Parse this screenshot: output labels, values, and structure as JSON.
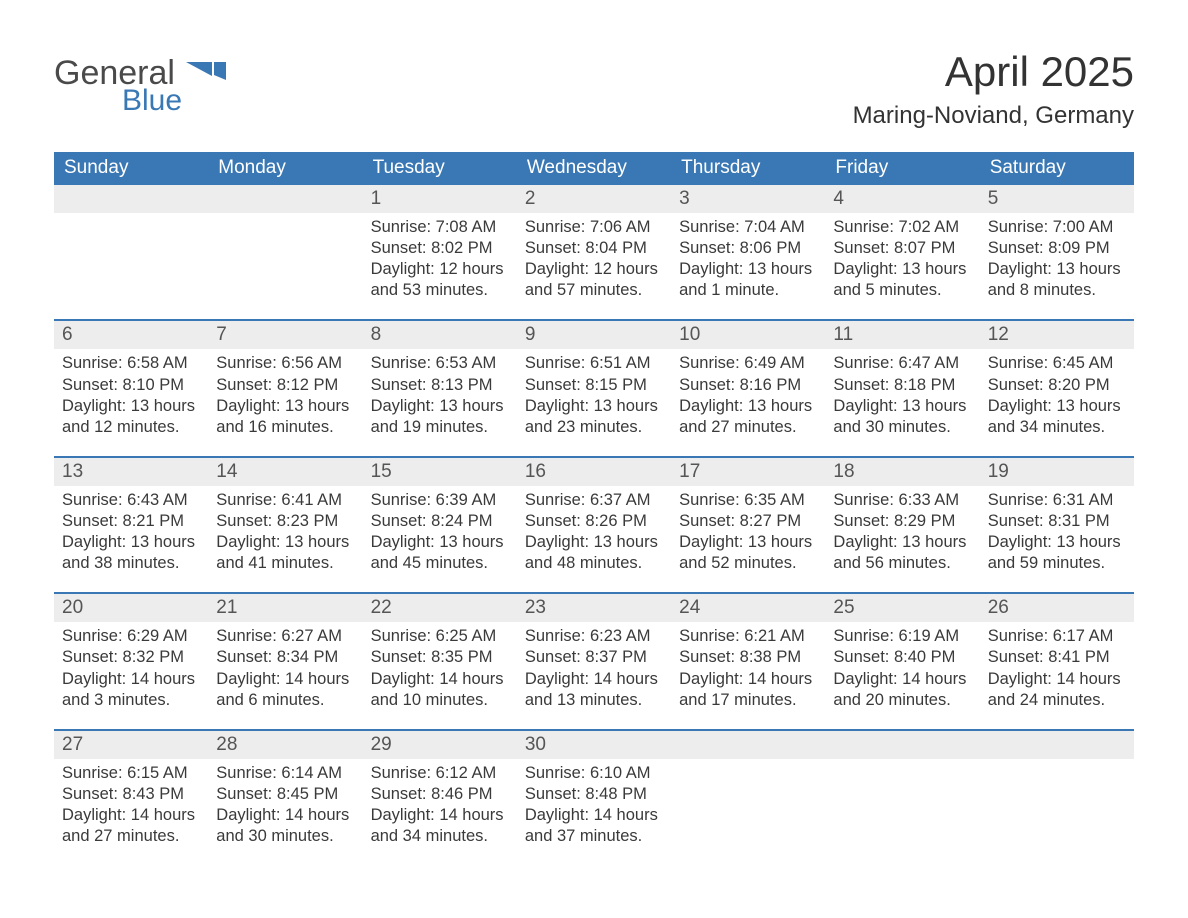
{
  "logo": {
    "word1": "General",
    "word2": "Blue",
    "word1_color": "#4a4a4a",
    "word2_color": "#3a78b5",
    "flag_color": "#3a78b5"
  },
  "title": "April 2025",
  "subtitle": "Maring-Noviand, Germany",
  "colors": {
    "header_bg": "#3a78b5",
    "header_text": "#ffffff",
    "daynum_bg": "#ededed",
    "week_border": "#3a78b5",
    "body_text": "#3a3a3a",
    "page_bg": "#ffffff"
  },
  "typography": {
    "title_fontsize": 42,
    "subtitle_fontsize": 24,
    "dayhead_fontsize": 19,
    "daynum_fontsize": 19,
    "body_fontsize": 16.5
  },
  "day_headers": [
    "Sunday",
    "Monday",
    "Tuesday",
    "Wednesday",
    "Thursday",
    "Friday",
    "Saturday"
  ],
  "weeks": [
    [
      {
        "day": "",
        "lines": []
      },
      {
        "day": "",
        "lines": []
      },
      {
        "day": "1",
        "lines": [
          "Sunrise: 7:08 AM",
          "Sunset: 8:02 PM",
          "Daylight: 12 hours and 53 minutes."
        ]
      },
      {
        "day": "2",
        "lines": [
          "Sunrise: 7:06 AM",
          "Sunset: 8:04 PM",
          "Daylight: 12 hours and 57 minutes."
        ]
      },
      {
        "day": "3",
        "lines": [
          "Sunrise: 7:04 AM",
          "Sunset: 8:06 PM",
          "Daylight: 13 hours and 1 minute."
        ]
      },
      {
        "day": "4",
        "lines": [
          "Sunrise: 7:02 AM",
          "Sunset: 8:07 PM",
          "Daylight: 13 hours and 5 minutes."
        ]
      },
      {
        "day": "5",
        "lines": [
          "Sunrise: 7:00 AM",
          "Sunset: 8:09 PM",
          "Daylight: 13 hours and 8 minutes."
        ]
      }
    ],
    [
      {
        "day": "6",
        "lines": [
          "Sunrise: 6:58 AM",
          "Sunset: 8:10 PM",
          "Daylight: 13 hours and 12 minutes."
        ]
      },
      {
        "day": "7",
        "lines": [
          "Sunrise: 6:56 AM",
          "Sunset: 8:12 PM",
          "Daylight: 13 hours and 16 minutes."
        ]
      },
      {
        "day": "8",
        "lines": [
          "Sunrise: 6:53 AM",
          "Sunset: 8:13 PM",
          "Daylight: 13 hours and 19 minutes."
        ]
      },
      {
        "day": "9",
        "lines": [
          "Sunrise: 6:51 AM",
          "Sunset: 8:15 PM",
          "Daylight: 13 hours and 23 minutes."
        ]
      },
      {
        "day": "10",
        "lines": [
          "Sunrise: 6:49 AM",
          "Sunset: 8:16 PM",
          "Daylight: 13 hours and 27 minutes."
        ]
      },
      {
        "day": "11",
        "lines": [
          "Sunrise: 6:47 AM",
          "Sunset: 8:18 PM",
          "Daylight: 13 hours and 30 minutes."
        ]
      },
      {
        "day": "12",
        "lines": [
          "Sunrise: 6:45 AM",
          "Sunset: 8:20 PM",
          "Daylight: 13 hours and 34 minutes."
        ]
      }
    ],
    [
      {
        "day": "13",
        "lines": [
          "Sunrise: 6:43 AM",
          "Sunset: 8:21 PM",
          "Daylight: 13 hours and 38 minutes."
        ]
      },
      {
        "day": "14",
        "lines": [
          "Sunrise: 6:41 AM",
          "Sunset: 8:23 PM",
          "Daylight: 13 hours and 41 minutes."
        ]
      },
      {
        "day": "15",
        "lines": [
          "Sunrise: 6:39 AM",
          "Sunset: 8:24 PM",
          "Daylight: 13 hours and 45 minutes."
        ]
      },
      {
        "day": "16",
        "lines": [
          "Sunrise: 6:37 AM",
          "Sunset: 8:26 PM",
          "Daylight: 13 hours and 48 minutes."
        ]
      },
      {
        "day": "17",
        "lines": [
          "Sunrise: 6:35 AM",
          "Sunset: 8:27 PM",
          "Daylight: 13 hours and 52 minutes."
        ]
      },
      {
        "day": "18",
        "lines": [
          "Sunrise: 6:33 AM",
          "Sunset: 8:29 PM",
          "Daylight: 13 hours and 56 minutes."
        ]
      },
      {
        "day": "19",
        "lines": [
          "Sunrise: 6:31 AM",
          "Sunset: 8:31 PM",
          "Daylight: 13 hours and 59 minutes."
        ]
      }
    ],
    [
      {
        "day": "20",
        "lines": [
          "Sunrise: 6:29 AM",
          "Sunset: 8:32 PM",
          "Daylight: 14 hours and 3 minutes."
        ]
      },
      {
        "day": "21",
        "lines": [
          "Sunrise: 6:27 AM",
          "Sunset: 8:34 PM",
          "Daylight: 14 hours and 6 minutes."
        ]
      },
      {
        "day": "22",
        "lines": [
          "Sunrise: 6:25 AM",
          "Sunset: 8:35 PM",
          "Daylight: 14 hours and 10 minutes."
        ]
      },
      {
        "day": "23",
        "lines": [
          "Sunrise: 6:23 AM",
          "Sunset: 8:37 PM",
          "Daylight: 14 hours and 13 minutes."
        ]
      },
      {
        "day": "24",
        "lines": [
          "Sunrise: 6:21 AM",
          "Sunset: 8:38 PM",
          "Daylight: 14 hours and 17 minutes."
        ]
      },
      {
        "day": "25",
        "lines": [
          "Sunrise: 6:19 AM",
          "Sunset: 8:40 PM",
          "Daylight: 14 hours and 20 minutes."
        ]
      },
      {
        "day": "26",
        "lines": [
          "Sunrise: 6:17 AM",
          "Sunset: 8:41 PM",
          "Daylight: 14 hours and 24 minutes."
        ]
      }
    ],
    [
      {
        "day": "27",
        "lines": [
          "Sunrise: 6:15 AM",
          "Sunset: 8:43 PM",
          "Daylight: 14 hours and 27 minutes."
        ]
      },
      {
        "day": "28",
        "lines": [
          "Sunrise: 6:14 AM",
          "Sunset: 8:45 PM",
          "Daylight: 14 hours and 30 minutes."
        ]
      },
      {
        "day": "29",
        "lines": [
          "Sunrise: 6:12 AM",
          "Sunset: 8:46 PM",
          "Daylight: 14 hours and 34 minutes."
        ]
      },
      {
        "day": "30",
        "lines": [
          "Sunrise: 6:10 AM",
          "Sunset: 8:48 PM",
          "Daylight: 14 hours and 37 minutes."
        ]
      },
      {
        "day": "",
        "lines": []
      },
      {
        "day": "",
        "lines": []
      },
      {
        "day": "",
        "lines": []
      }
    ]
  ]
}
